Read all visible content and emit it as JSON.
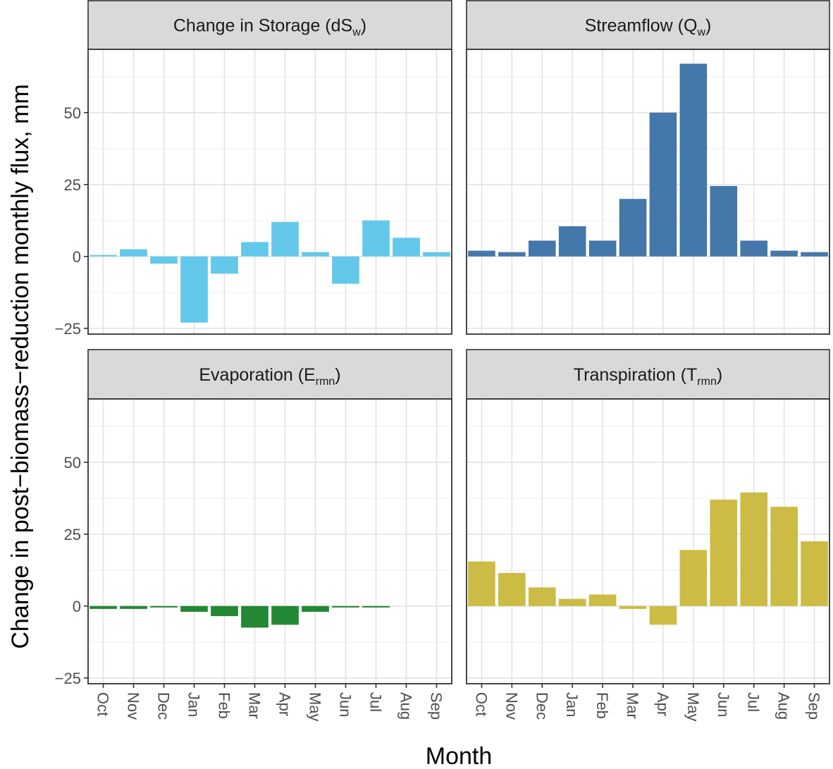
{
  "chart_data": {
    "type": "bar",
    "layout": "facet-grid 2x2",
    "xlabel": "Month",
    "ylabel": "Change in post−biomass−reduction monthly flux, mm",
    "categories": [
      "Oct",
      "Nov",
      "Dec",
      "Jan",
      "Feb",
      "Mar",
      "Apr",
      "May",
      "Jun",
      "Jul",
      "Aug",
      "Sep"
    ],
    "ylim": [
      -27,
      72
    ],
    "yticks": [
      -25,
      0,
      25,
      50
    ],
    "ytick_labels": [
      "−25",
      "0",
      "25",
      "50"
    ],
    "grid": true,
    "panels": [
      {
        "title_main": "Change in Storage (dS",
        "title_sub": "w",
        "title_end": ")",
        "color": "#63c8ea",
        "values": [
          0.5,
          2.5,
          -2.5,
          -23,
          -6,
          5,
          12,
          1.5,
          -9.5,
          12.5,
          6.5,
          1.5
        ]
      },
      {
        "title_main": "Streamflow (Q",
        "title_sub": "w",
        "title_end": ")",
        "color": "#4477aa",
        "values": [
          2,
          1.5,
          5.5,
          10.5,
          5.5,
          20,
          50,
          67,
          24.5,
          5.5,
          2,
          1.5
        ]
      },
      {
        "title_main": "Evaporation (E",
        "title_sub": "rmn",
        "title_end": ")",
        "color": "#228833",
        "values": [
          -1,
          -1,
          -0.5,
          -2,
          -3.5,
          -7.5,
          -6.5,
          -2,
          -0.5,
          -0.5,
          0,
          0
        ]
      },
      {
        "title_main": "Transpiration (T",
        "title_sub": "rmn",
        "title_end": ")",
        "color": "#ccbb44",
        "values": [
          15.5,
          11.5,
          6.5,
          2.5,
          4,
          -1,
          -6.5,
          19.5,
          37,
          39.5,
          34.5,
          22.5
        ]
      }
    ]
  }
}
